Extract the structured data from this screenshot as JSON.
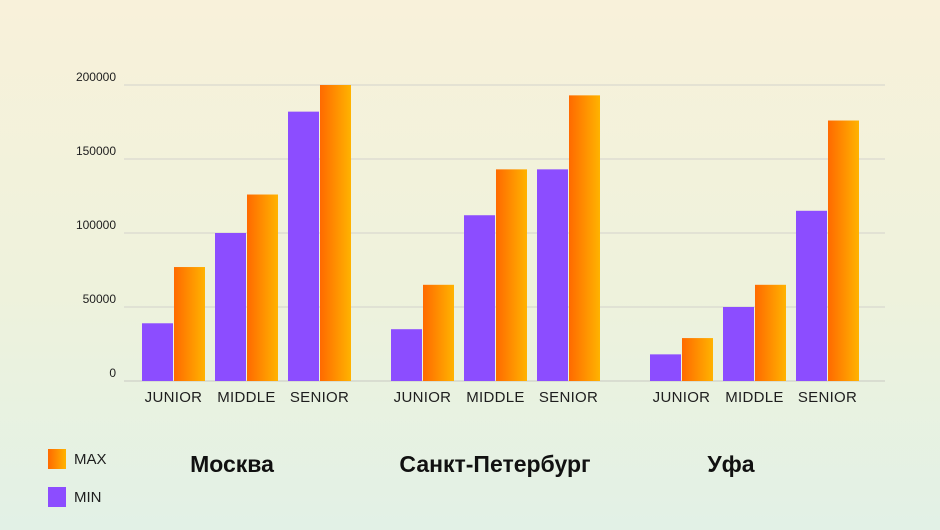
{
  "chart_data": {
    "type": "bar",
    "title": "",
    "xlabel": "",
    "ylabel": "",
    "ylim": [
      0,
      200000
    ],
    "yticks": [
      0,
      50000,
      100000,
      150000,
      200000
    ],
    "grid": true,
    "legend_position": "bottom-left",
    "groups": [
      {
        "name": "Москва",
        "categories": [
          "JUNIOR",
          "MIDDLE",
          "SENIOR"
        ],
        "series": [
          {
            "name": "MIN",
            "values": [
              39000,
              100000,
              182000
            ]
          },
          {
            "name": "MAX",
            "values": [
              77000,
              126000,
              200000
            ]
          }
        ]
      },
      {
        "name": "Санкт-Петербург",
        "categories": [
          "JUNIOR",
          "MIDDLE",
          "SENIOR"
        ],
        "series": [
          {
            "name": "MIN",
            "values": [
              35000,
              112000,
              143000
            ]
          },
          {
            "name": "MAX",
            "values": [
              65000,
              143000,
              193000
            ]
          }
        ]
      },
      {
        "name": "Уфа",
        "categories": [
          "JUNIOR",
          "MIDDLE",
          "SENIOR"
        ],
        "series": [
          {
            "name": "MIN",
            "values": [
              18000,
              50000,
              115000
            ]
          },
          {
            "name": "MAX",
            "values": [
              29000,
              65000,
              176000
            ]
          }
        ]
      }
    ],
    "legend": [
      {
        "name": "MAX",
        "color": "#ff6a00",
        "color_end": "#ffb300"
      },
      {
        "name": "MIN",
        "color": "#8c4dff"
      }
    ]
  }
}
